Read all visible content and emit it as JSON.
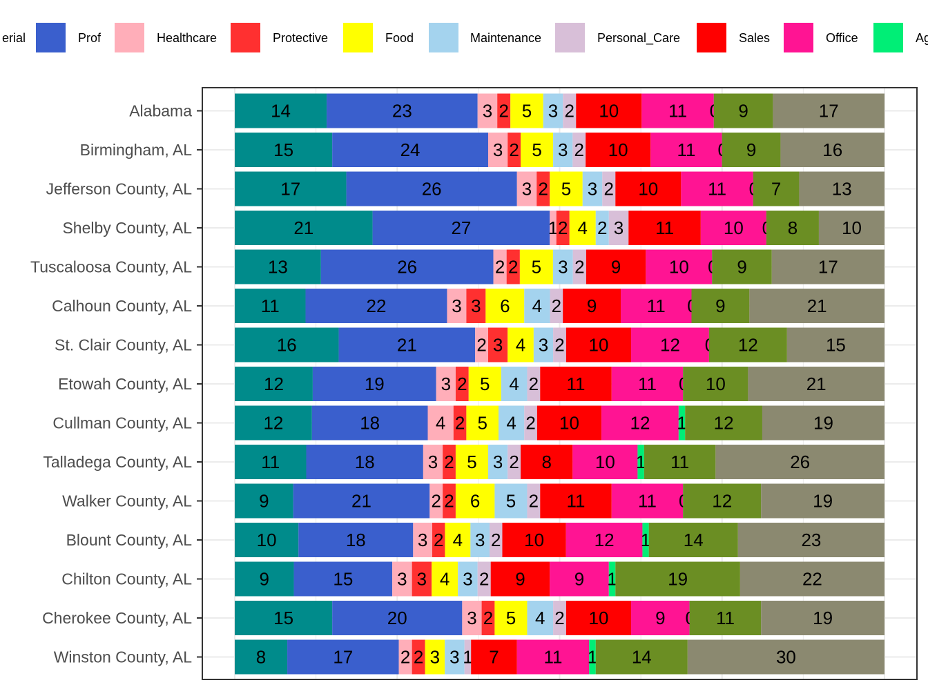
{
  "chart_data": {
    "type": "bar",
    "orientation": "horizontal",
    "stacked": true,
    "normalized_to_percent": true,
    "title": "",
    "xlabel": "",
    "ylabel": "",
    "grid": true,
    "legend_position": "top",
    "categories": [
      "Alabama",
      "Birmingham, AL",
      "Jefferson County, AL",
      "Shelby County, AL",
      "Tuscaloosa County, AL",
      "Calhoun County, AL",
      "St. Clair County, AL",
      "Etowah County, AL",
      "Cullman County, AL",
      "Talladega County, AL",
      "Walker County, AL",
      "Blount County, AL",
      "Chilton County, AL",
      "Cherokee County, AL",
      "Winston County, AL"
    ],
    "series": [
      {
        "name": "Managerial",
        "legend_text": "erial",
        "color": "#008B8B",
        "values": [
          14,
          15,
          17,
          21,
          13,
          11,
          16,
          12,
          12,
          11,
          9,
          10,
          9,
          15,
          8
        ]
      },
      {
        "name": "Prof",
        "color": "#3A5FCD",
        "values": [
          23,
          24,
          26,
          27,
          26,
          22,
          21,
          19,
          18,
          18,
          21,
          18,
          15,
          20,
          17
        ]
      },
      {
        "name": "Healthcare",
        "color": "#FFAEB9",
        "values": [
          3,
          3,
          3,
          1,
          2,
          3,
          2,
          3,
          4,
          3,
          2,
          3,
          3,
          3,
          2
        ]
      },
      {
        "name": "Protective",
        "color": "#FF3030",
        "values": [
          2,
          2,
          2,
          2,
          2,
          3,
          3,
          2,
          2,
          2,
          2,
          2,
          3,
          2,
          2
        ]
      },
      {
        "name": "Food",
        "color": "#FFFF00",
        "values": [
          5,
          5,
          5,
          4,
          5,
          6,
          4,
          5,
          5,
          5,
          6,
          4,
          4,
          5,
          3
        ]
      },
      {
        "name": "Maintenance",
        "color": "#A4D3EE",
        "values": [
          3,
          3,
          3,
          2,
          3,
          4,
          3,
          4,
          4,
          3,
          5,
          3,
          3,
          4,
          3
        ]
      },
      {
        "name": "Personal_Care",
        "color": "#D8BFD8",
        "values": [
          2,
          2,
          2,
          3,
          2,
          2,
          2,
          2,
          2,
          2,
          2,
          2,
          2,
          2,
          1
        ]
      },
      {
        "name": "Sales",
        "color": "#FF0000",
        "values": [
          10,
          10,
          10,
          11,
          9,
          9,
          10,
          11,
          10,
          8,
          11,
          10,
          9,
          10,
          7
        ]
      },
      {
        "name": "Office",
        "color": "#FF1493",
        "values": [
          11,
          11,
          11,
          10,
          10,
          11,
          12,
          11,
          12,
          10,
          11,
          12,
          9,
          9,
          11
        ]
      },
      {
        "name": "Ag",
        "color": "#00EE76",
        "values": [
          0,
          0,
          0,
          0,
          0,
          0,
          0,
          0,
          1,
          1,
          0,
          1,
          1,
          0,
          1
        ]
      },
      {
        "color": "#6B8E23",
        "values": [
          9,
          9,
          7,
          8,
          9,
          9,
          12,
          10,
          12,
          11,
          12,
          14,
          19,
          11,
          14
        ]
      },
      {
        "color": "#8B8970",
        "values": [
          17,
          16,
          13,
          10,
          17,
          21,
          15,
          21,
          19,
          26,
          19,
          23,
          22,
          19,
          30
        ]
      }
    ]
  }
}
